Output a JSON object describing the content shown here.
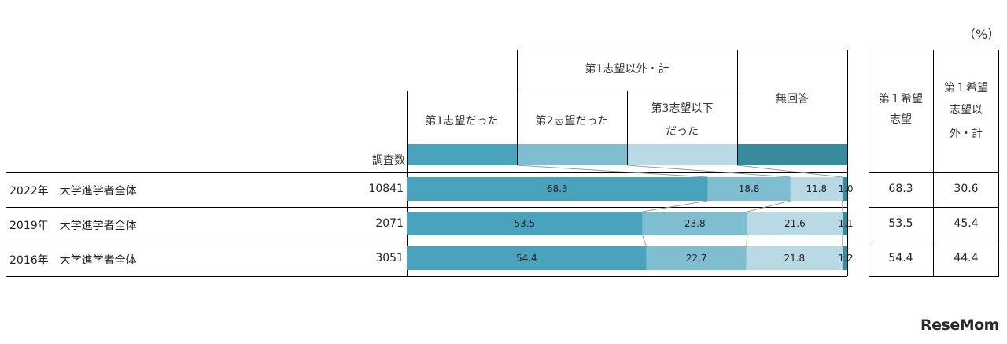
{
  "unit_label": "（%）",
  "header": {
    "group_label": "第1志望以外・計",
    "col1": "第1志望だった",
    "col2": "第2志望だった",
    "col3_line1": "第3志望以下",
    "col3_line2": "だった",
    "col4": "無回答",
    "count_label": "調査数",
    "side1_line1": "第１希望",
    "side1_line2": "志望",
    "side2_line1": "第１希望",
    "side2_line2": "志望以",
    "side2_line3": "外・計"
  },
  "rows": [
    {
      "label": "2022年　大学進学者全体",
      "count": "10841",
      "side1": "68.3",
      "side2": "30.6"
    },
    {
      "label": "2019年　大学進学者全体",
      "count": "2071",
      "side1": "53.5",
      "side2": "45.4"
    },
    {
      "label": "2016年　大学進学者全体",
      "count": "3051",
      "side1": "54.4",
      "side2": "44.4"
    }
  ],
  "colors": {
    "first": "#4aa3bd",
    "second": "#7fbdd1",
    "third": "#b9d9e4",
    "none": "#3a8a9e",
    "connector": "#999999",
    "border": "#000000"
  },
  "logo": "ReseMom",
  "chart_data": {
    "type": "bar",
    "stacked": true,
    "orientation": "horizontal",
    "categories": [
      "2022年　大学進学者全体",
      "2019年　大学進学者全体",
      "2016年　大学進学者全体"
    ],
    "series": [
      {
        "name": "第1志望だった",
        "values": [
          68.3,
          53.5,
          54.4
        ]
      },
      {
        "name": "第2志望だった",
        "values": [
          18.8,
          23.8,
          22.7
        ]
      },
      {
        "name": "第3志望以下だった",
        "values": [
          11.8,
          21.6,
          21.8
        ]
      },
      {
        "name": "無回答",
        "values": [
          1.0,
          1.1,
          1.2
        ]
      }
    ],
    "value_labels": [
      [
        "68.3",
        "18.8",
        "11.8",
        "1.0"
      ],
      [
        "53.5",
        "23.8",
        "21.6",
        "1.1"
      ],
      [
        "54.4",
        "22.7",
        "21.8",
        "1.2"
      ]
    ],
    "xlim": [
      0,
      100
    ]
  }
}
